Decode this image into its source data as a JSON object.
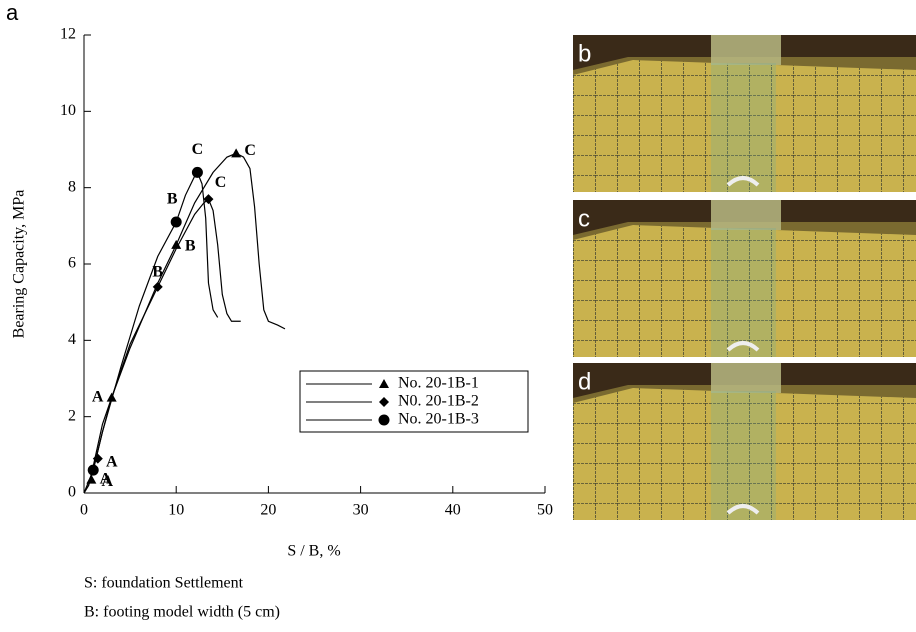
{
  "panel_label": "a",
  "chart_data": {
    "type": "line",
    "xlabel": "S / B, %",
    "ylabel": "Bearing Capacity, MPa",
    "xlim": [
      0,
      50
    ],
    "xticks": [
      0,
      10,
      20,
      30,
      40,
      50
    ],
    "ylim": [
      0,
      12
    ],
    "yticks": [
      0,
      2,
      4,
      6,
      8,
      10,
      12
    ],
    "color": "#000000",
    "legend": "lower right",
    "series": [
      {
        "name": "No. 20-1B-1",
        "marker": "triangle",
        "x": [
          0,
          0.5,
          1,
          2,
          3,
          5,
          8,
          10,
          12,
          14,
          15.5,
          16.5,
          17.3,
          18,
          18.5,
          19,
          19.5,
          20,
          21,
          21.8
        ],
        "values": [
          0,
          0.2,
          0.6,
          1.6,
          2.5,
          3.8,
          5.5,
          6.5,
          7.6,
          8.4,
          8.8,
          8.9,
          8.8,
          8.5,
          7.5,
          6,
          4.8,
          4.5,
          4.4,
          4.3
        ],
        "points": [
          {
            "label": "A",
            "x": 0.8,
            "y": 0.35
          },
          {
            "label": "A",
            "x": 3,
            "y": 2.5
          },
          {
            "label": "B",
            "x": 10,
            "y": 6.5
          },
          {
            "label": "C",
            "x": 16.5,
            "y": 8.9
          }
        ]
      },
      {
        "name": "N0. 20-1B-2",
        "marker": "diamond",
        "x": [
          0,
          0.5,
          1,
          2,
          3,
          5,
          8,
          10,
          12,
          13,
          13.5,
          14,
          14.5,
          15,
          15.5,
          16,
          17
        ],
        "values": [
          0,
          0.2,
          0.7,
          1.8,
          2.5,
          3.9,
          5.4,
          6.4,
          7.3,
          7.6,
          7.7,
          7.4,
          6.5,
          5.2,
          4.7,
          4.5,
          4.5
        ],
        "points": [
          {
            "label": "A",
            "x": 1.5,
            "y": 0.9
          },
          {
            "label": "B",
            "x": 8,
            "y": 5.4
          },
          {
            "label": "C",
            "x": 13.5,
            "y": 7.7
          }
        ]
      },
      {
        "name": "No. 20-1B-3",
        "marker": "circle",
        "x": [
          0,
          0.5,
          1,
          2,
          4,
          6,
          8,
          10,
          11,
          12,
          12.3,
          12.8,
          13.2,
          13.5,
          14,
          14.5
        ],
        "values": [
          0,
          0.3,
          0.6,
          1.6,
          3.3,
          4.9,
          6.2,
          7.1,
          7.8,
          8.3,
          8.4,
          8.1,
          7.2,
          5.5,
          4.8,
          4.6
        ],
        "points": [
          {
            "label": "A",
            "x": 1,
            "y": 0.6
          },
          {
            "label": "B",
            "x": 10,
            "y": 7.1
          },
          {
            "label": "C",
            "x": 12.3,
            "y": 8.4
          }
        ]
      }
    ],
    "notes": [
      "S: foundation Settlement",
      "B: footing model width (5 cm)"
    ]
  },
  "photos": {
    "labels": [
      "b",
      "c",
      "d"
    ]
  }
}
